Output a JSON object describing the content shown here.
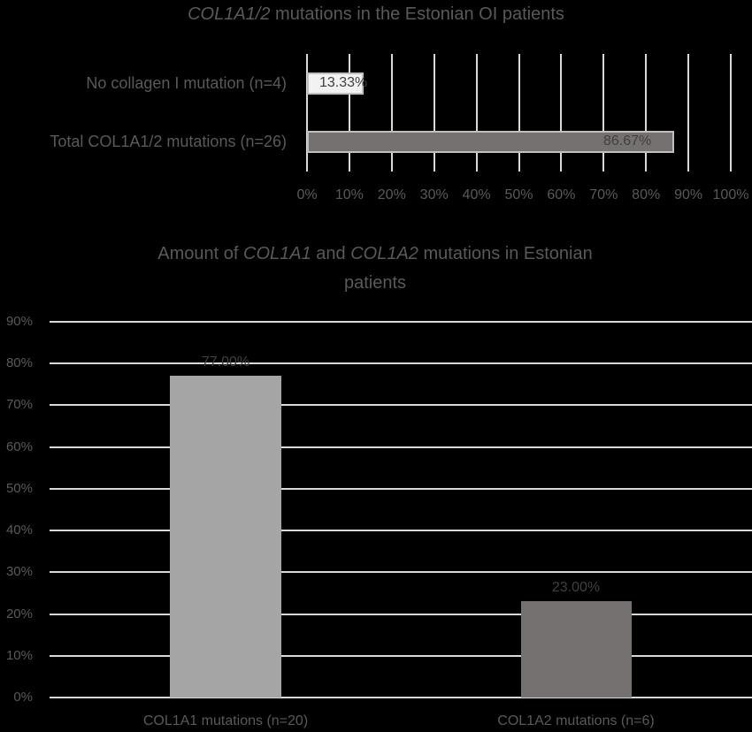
{
  "chart_data": [
    {
      "type": "bar",
      "orientation": "horizontal",
      "title_parts": [
        {
          "text": "COL1A1/2",
          "italic": true
        },
        {
          "text": " mutations in the Estonian OI patients",
          "italic": false
        }
      ],
      "title": "COL1A1/2 mutations in the Estonian OI patients",
      "categories": [
        "No collagen I mutation (n=4)",
        "Total COL1A1/2 mutations (n=26)"
      ],
      "values": [
        13.33,
        86.67
      ],
      "data_labels": [
        "13.33%",
        "86.67%"
      ],
      "bar_colors": [
        "#f2f2f2",
        "#767171"
      ],
      "xlabel": "",
      "ylabel": "",
      "xlim": [
        0,
        100
      ],
      "x_ticks": [
        "0%",
        "10%",
        "20%",
        "30%",
        "40%",
        "50%",
        "60%",
        "70%",
        "80%",
        "90%",
        "100%"
      ],
      "grid": "vertical",
      "legend": "none"
    },
    {
      "type": "bar",
      "orientation": "vertical",
      "title_parts": [
        {
          "text": "Amount of ",
          "italic": false
        },
        {
          "text": "COL1A1",
          "italic": true
        },
        {
          "text": " and ",
          "italic": false
        },
        {
          "text": "COL1A2",
          "italic": true
        },
        {
          "text": " mutations in Estonian",
          "italic": false
        }
      ],
      "title_line2": "patients",
      "title": "Amount of COL1A1 and COL1A2 mutations in Estonian patients",
      "categories": [
        "COL1A1 mutations (n=20)",
        "COL1A2 mutations (n=6)"
      ],
      "values": [
        77.0,
        23.0
      ],
      "data_labels": [
        "77.00%",
        "23.00%"
      ],
      "bar_colors": [
        "#a5a5a5",
        "#767171"
      ],
      "xlabel": "",
      "ylabel": "",
      "ylim": [
        0,
        90
      ],
      "y_ticks": [
        "0%",
        "10%",
        "20%",
        "30%",
        "40%",
        "50%",
        "60%",
        "70%",
        "80%",
        "90%"
      ],
      "grid": "horizontal",
      "legend": "none"
    }
  ],
  "colors": {
    "background": "#000000",
    "text": "#595959",
    "gridline": "#d9d9d9"
  }
}
